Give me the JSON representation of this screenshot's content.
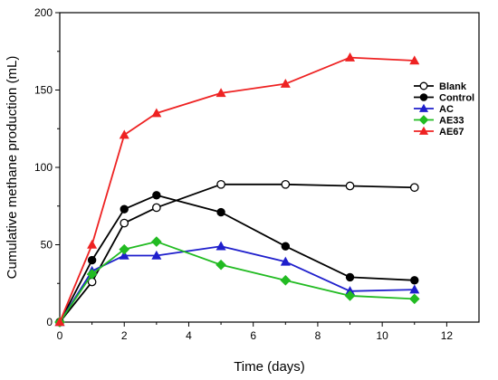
{
  "chart_data": {
    "type": "line",
    "title": "",
    "xlabel": "Time (days)",
    "ylabel": "Cumulative methane production (mL)",
    "xlim": [
      0,
      13
    ],
    "ylim": [
      0,
      200
    ],
    "x_ticks": [
      0,
      2,
      4,
      6,
      8,
      10,
      12
    ],
    "y_ticks": [
      0,
      50,
      100,
      150,
      200
    ],
    "grid": false,
    "legend_position": "right",
    "x": [
      0,
      1,
      2,
      3,
      5,
      7,
      9,
      11
    ],
    "series": [
      {
        "name": "Blank",
        "color": "#000000",
        "marker": "circle-open",
        "values": [
          0,
          26,
          64,
          74,
          89,
          89,
          88,
          87
        ]
      },
      {
        "name": "Control",
        "color": "#000000",
        "marker": "circle-filled",
        "values": [
          0,
          40,
          73,
          82,
          71,
          49,
          29,
          27
        ]
      },
      {
        "name": "AC",
        "color": "#1f1fcc",
        "marker": "triangle",
        "values": [
          0,
          33,
          43,
          43,
          49,
          39,
          20,
          21
        ]
      },
      {
        "name": "AE33",
        "color": "#22bb22",
        "marker": "diamond",
        "values": [
          0,
          31,
          47,
          52,
          37,
          27,
          17,
          15
        ]
      },
      {
        "name": "AE67",
        "color": "#ee2222",
        "marker": "triangle",
        "values": [
          0,
          50,
          121,
          135,
          148,
          154,
          171,
          169
        ]
      }
    ]
  }
}
